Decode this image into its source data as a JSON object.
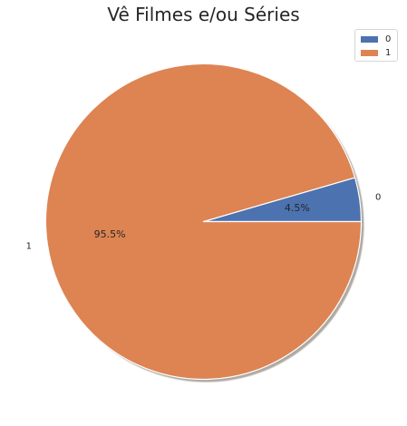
{
  "chart_data": {
    "type": "pie",
    "title": "Vê Filmes e/ou Séries",
    "categories": [
      "0",
      "1"
    ],
    "values": [
      4.5,
      95.5
    ],
    "autopct_labels": [
      "4.5%",
      "95.5%"
    ],
    "colors": [
      "#4c72b0",
      "#dd8452"
    ],
    "shadow": true,
    "start_angle_deg": 0,
    "legend": {
      "placement": "top-right",
      "entries": [
        "0",
        "1"
      ]
    }
  }
}
